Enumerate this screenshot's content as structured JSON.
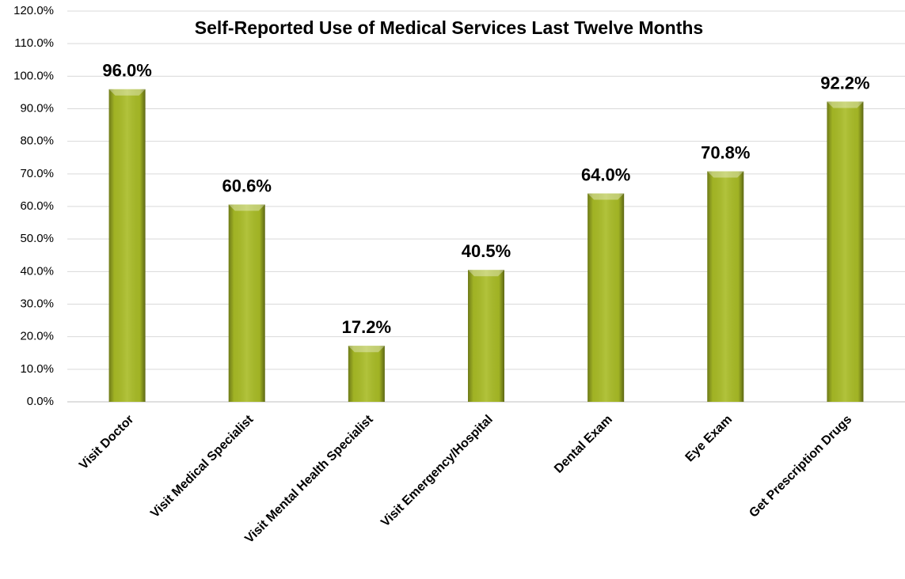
{
  "chart_data": {
    "type": "bar",
    "title": "Self-Reported Use of Medical Services Last Twelve Months",
    "categories": [
      "Visit Doctor",
      "Visit Medical Specialist",
      "Visit Mental Health Specialist",
      "Visit Emergency/Hospital",
      "Dental Exam",
      "Eye Exam",
      "Get Prescription Drugs"
    ],
    "values": [
      96.0,
      60.6,
      17.2,
      40.5,
      64.0,
      70.8,
      92.2
    ],
    "value_labels": [
      "96.0%",
      "60.6%",
      "17.2%",
      "40.5%",
      "64.0%",
      "70.8%",
      "92.2%"
    ],
    "color": "#a9bc26",
    "ylim": [
      0,
      120
    ],
    "yticks": [
      {
        "value": 0,
        "label": "0.0%"
      },
      {
        "value": 10,
        "label": "10.0%"
      },
      {
        "value": 20,
        "label": "20.0%"
      },
      {
        "value": 30,
        "label": "30.0%"
      },
      {
        "value": 40,
        "label": "40.0%"
      },
      {
        "value": 50,
        "label": "50.0%"
      },
      {
        "value": 60,
        "label": "60.0%"
      },
      {
        "value": 70,
        "label": "70.0%"
      },
      {
        "value": 80,
        "label": "80.0%"
      },
      {
        "value": 90,
        "label": "90.0%"
      },
      {
        "value": 100,
        "label": "100.0%"
      },
      {
        "value": 110,
        "label": "110.0%"
      },
      {
        "value": 120,
        "label": "120.0%"
      }
    ],
    "grid": true
  }
}
